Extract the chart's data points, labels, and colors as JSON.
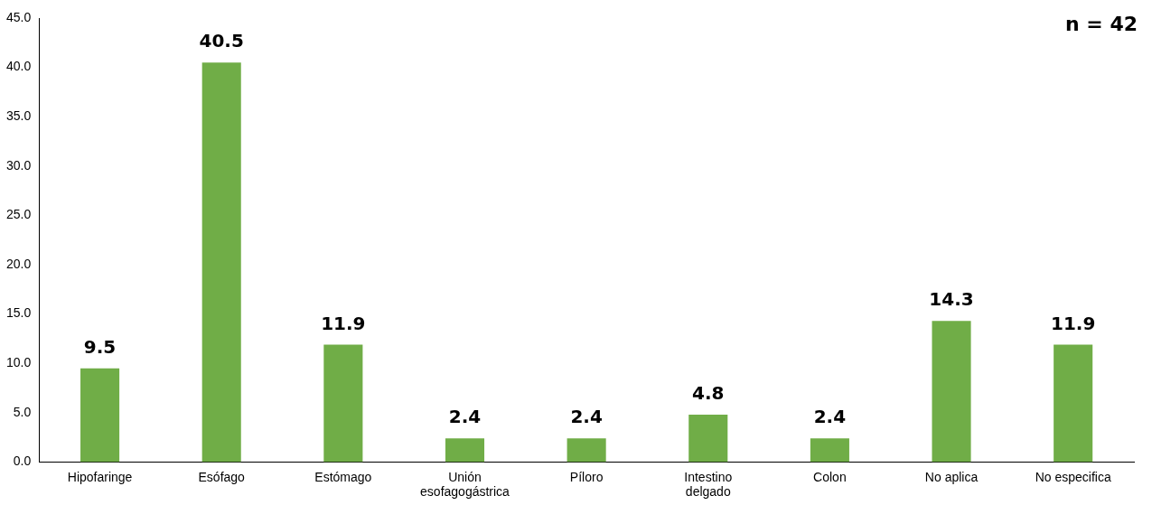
{
  "chart_data": {
    "type": "bar",
    "categories": [
      "Hipofaringe",
      "Esófago",
      "Estómago",
      "Unión esofagogástrica",
      "Píloro",
      "Intestino delgado",
      "Colon",
      "No aplica",
      "No especifica"
    ],
    "values": [
      9.5,
      40.5,
      11.9,
      2.4,
      2.4,
      4.8,
      2.4,
      14.3,
      11.9
    ],
    "color": "#70ad47",
    "ylim": [
      0,
      45
    ],
    "yticks": [
      {
        "value": 0,
        "label": "0.0"
      },
      {
        "value": 5,
        "label": "5.0"
      },
      {
        "value": 10,
        "label": "10.0"
      },
      {
        "value": 15,
        "label": "15.0"
      },
      {
        "value": 20,
        "label": "20.0"
      },
      {
        "value": 25,
        "label": "25.0"
      },
      {
        "value": 30,
        "label": "30.0"
      },
      {
        "value": 35,
        "label": "35.0"
      },
      {
        "value": 40,
        "label": "40.0"
      },
      {
        "value": 45,
        "label": "45.0"
      }
    ],
    "data_labels": true,
    "grid": false,
    "legend": false,
    "annotations": [
      "n = 42"
    ]
  }
}
